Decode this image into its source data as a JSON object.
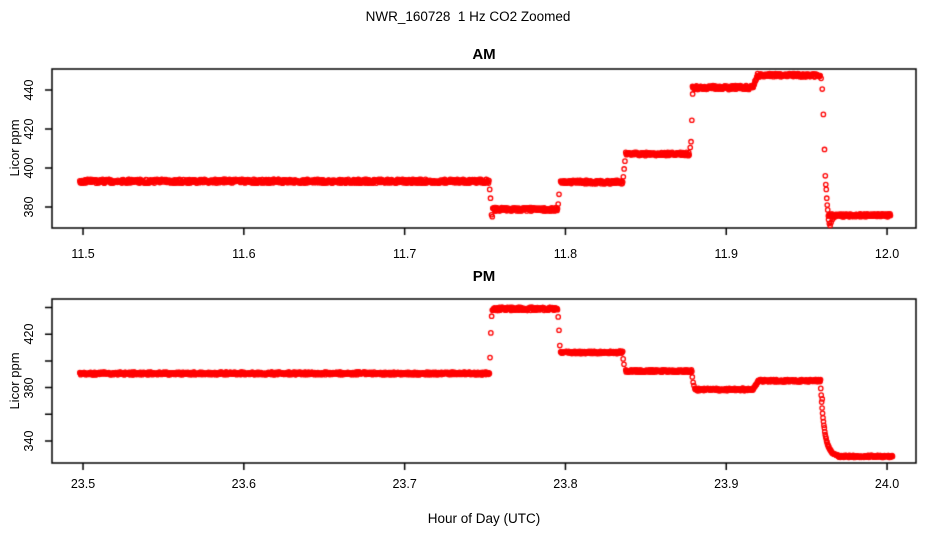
{
  "header": {
    "title": "NWR_160728  1 Hz CO2 Zoomed"
  },
  "axes": {
    "xlabel": "Hour of Day (UTC)",
    "ylabel": "Licor ppm"
  },
  "colors": {
    "points": "#FF0000",
    "axis": "#000000",
    "background": "#FFFFFF",
    "text": "#000000"
  },
  "chart_data": [
    {
      "type": "scatter",
      "panel_title": "AM",
      "marker": "open-circle",
      "point_color": "#FF0000",
      "grid": false,
      "xlim": [
        11.4807,
        12.018
      ],
      "ylim": [
        369.2,
        450.8
      ],
      "x_ticks": [
        {
          "v": 11.5,
          "label": "11.5"
        },
        {
          "v": 11.6,
          "label": "11.6"
        },
        {
          "v": 11.7,
          "label": "11.7"
        },
        {
          "v": 11.8,
          "label": "11.8"
        },
        {
          "v": 11.9,
          "label": "11.9"
        },
        {
          "v": 12.0,
          "label": "12.0"
        }
      ],
      "y_ticks": [
        {
          "v": 380,
          "label": "380"
        },
        {
          "v": 400,
          "label": "400"
        },
        {
          "v": 420,
          "label": "420"
        },
        {
          "v": 440,
          "label": "440"
        }
      ],
      "plateaus": [
        {
          "t0": 11.498,
          "t1": 11.7525,
          "ppm": 393.2,
          "noise": 1.0,
          "seed": 1
        },
        {
          "t0": 11.7548,
          "t1": 11.795,
          "ppm": 378.8,
          "noise": 0.9,
          "seed": 2
        },
        {
          "t0": 11.797,
          "t1": 11.8355,
          "ppm": 392.8,
          "noise": 0.9,
          "seed": 3
        },
        {
          "t0": 11.8375,
          "t1": 11.877,
          "ppm": 407.2,
          "noise": 0.9,
          "seed": 4
        },
        {
          "t0": 11.879,
          "t1": 11.9165,
          "ppm": 441.3,
          "noise": 1.0,
          "seed": 5
        },
        {
          "t0": 11.9195,
          "t1": 11.9585,
          "ppm": 447.6,
          "noise": 0.9,
          "seed": 6
        },
        {
          "t0": 11.9635,
          "t1": 12.002,
          "ppm": 375.7,
          "noise": 0.8,
          "seed": 7
        }
      ],
      "ramps": [
        {
          "t0": 11.9165,
          "t1": 11.9195,
          "v0": 441.3,
          "v1": 447.6,
          "shape": "linear",
          "noise": 0.5,
          "seed": 8
        }
      ],
      "transition_points": [
        [
          11.7529,
          389.0
        ],
        [
          11.7534,
          384.5
        ],
        [
          11.754,
          376.0
        ],
        [
          11.7545,
          375.0
        ],
        [
          11.7955,
          381.5
        ],
        [
          11.796,
          386.5
        ],
        [
          11.836,
          395.5
        ],
        [
          11.8365,
          399.5
        ],
        [
          11.837,
          403.5
        ],
        [
          11.8776,
          410.5
        ],
        [
          11.8781,
          413.5
        ],
        [
          11.8786,
          424.5
        ],
        [
          11.8791,
          438.0
        ],
        [
          11.959,
          446.0
        ],
        [
          11.9597,
          440.5
        ],
        [
          11.9604,
          427.5
        ],
        [
          11.9611,
          409.5
        ],
        [
          11.9616,
          396.0
        ],
        [
          11.9619,
          391.5
        ],
        [
          11.9622,
          389.0
        ],
        [
          11.9625,
          384.5
        ],
        [
          11.9628,
          381.0
        ],
        [
          11.9631,
          378.5
        ],
        [
          11.9636,
          373.5
        ],
        [
          11.9641,
          371.5
        ],
        [
          11.9646,
          370.5
        ],
        [
          11.9652,
          372.0
        ],
        [
          11.966,
          373.5
        ],
        [
          11.9668,
          374.5
        ]
      ]
    },
    {
      "type": "scatter",
      "panel_title": "PM",
      "marker": "open-circle",
      "point_color": "#FF0000",
      "grid": false,
      "xlim": [
        23.4807,
        24.018
      ],
      "ylim": [
        323.5,
        446.4
      ],
      "x_ticks": [
        {
          "v": 23.5,
          "label": "23.5"
        },
        {
          "v": 23.6,
          "label": "23.6"
        },
        {
          "v": 23.7,
          "label": "23.7"
        },
        {
          "v": 23.8,
          "label": "23.8"
        },
        {
          "v": 23.9,
          "label": "23.9"
        },
        {
          "v": 24.0,
          "label": "24.0"
        }
      ],
      "y_ticks": [
        {
          "v": 340,
          "label": "340"
        },
        {
          "v": 360,
          "label": ""
        },
        {
          "v": 380,
          "label": "380"
        },
        {
          "v": 400,
          "label": ""
        },
        {
          "v": 420,
          "label": "420"
        },
        {
          "v": 440,
          "label": ""
        }
      ],
      "plateaus": [
        {
          "t0": 23.498,
          "t1": 23.7527,
          "ppm": 390.6,
          "noise": 1.0,
          "seed": 11
        },
        {
          "t0": 23.7545,
          "t1": 23.795,
          "ppm": 439.0,
          "noise": 1.2,
          "seed": 12
        },
        {
          "t0": 23.797,
          "t1": 23.8355,
          "ppm": 406.4,
          "noise": 0.9,
          "seed": 13
        },
        {
          "t0": 23.8375,
          "t1": 23.8785,
          "ppm": 392.4,
          "noise": 0.9,
          "seed": 14
        },
        {
          "t0": 23.8805,
          "t1": 23.9165,
          "ppm": 378.6,
          "noise": 0.9,
          "seed": 15
        },
        {
          "t0": 23.92,
          "t1": 23.9585,
          "ppm": 385.2,
          "noise": 0.9,
          "seed": 16
        },
        {
          "t0": 23.9695,
          "t1": 24.0035,
          "ppm": 328.5,
          "noise": 0.8,
          "seed": 17
        }
      ],
      "ramps": [
        {
          "t0": 23.9165,
          "t1": 23.92,
          "v0": 378.6,
          "v1": 385.2,
          "shape": "linear",
          "noise": 0.5,
          "seed": 18
        },
        {
          "t0": 23.9585,
          "t1": 23.9695,
          "v0": 385.2,
          "v1": 328.5,
          "shape": "exp",
          "tau": 0.0025,
          "noise": 0.5,
          "seed": 19
        }
      ],
      "transition_points": [
        [
          23.7531,
          402.5
        ],
        [
          23.7536,
          421.0
        ],
        [
          23.7541,
          433.5
        ],
        [
          23.7955,
          433.0
        ],
        [
          23.796,
          423.0
        ],
        [
          23.7965,
          411.5
        ],
        [
          23.8359,
          401.5
        ],
        [
          23.8364,
          397.5
        ],
        [
          23.8789,
          388.0
        ],
        [
          23.8794,
          384.0
        ],
        [
          23.8799,
          381.5
        ],
        [
          23.9597,
          371.5
        ]
      ]
    }
  ]
}
